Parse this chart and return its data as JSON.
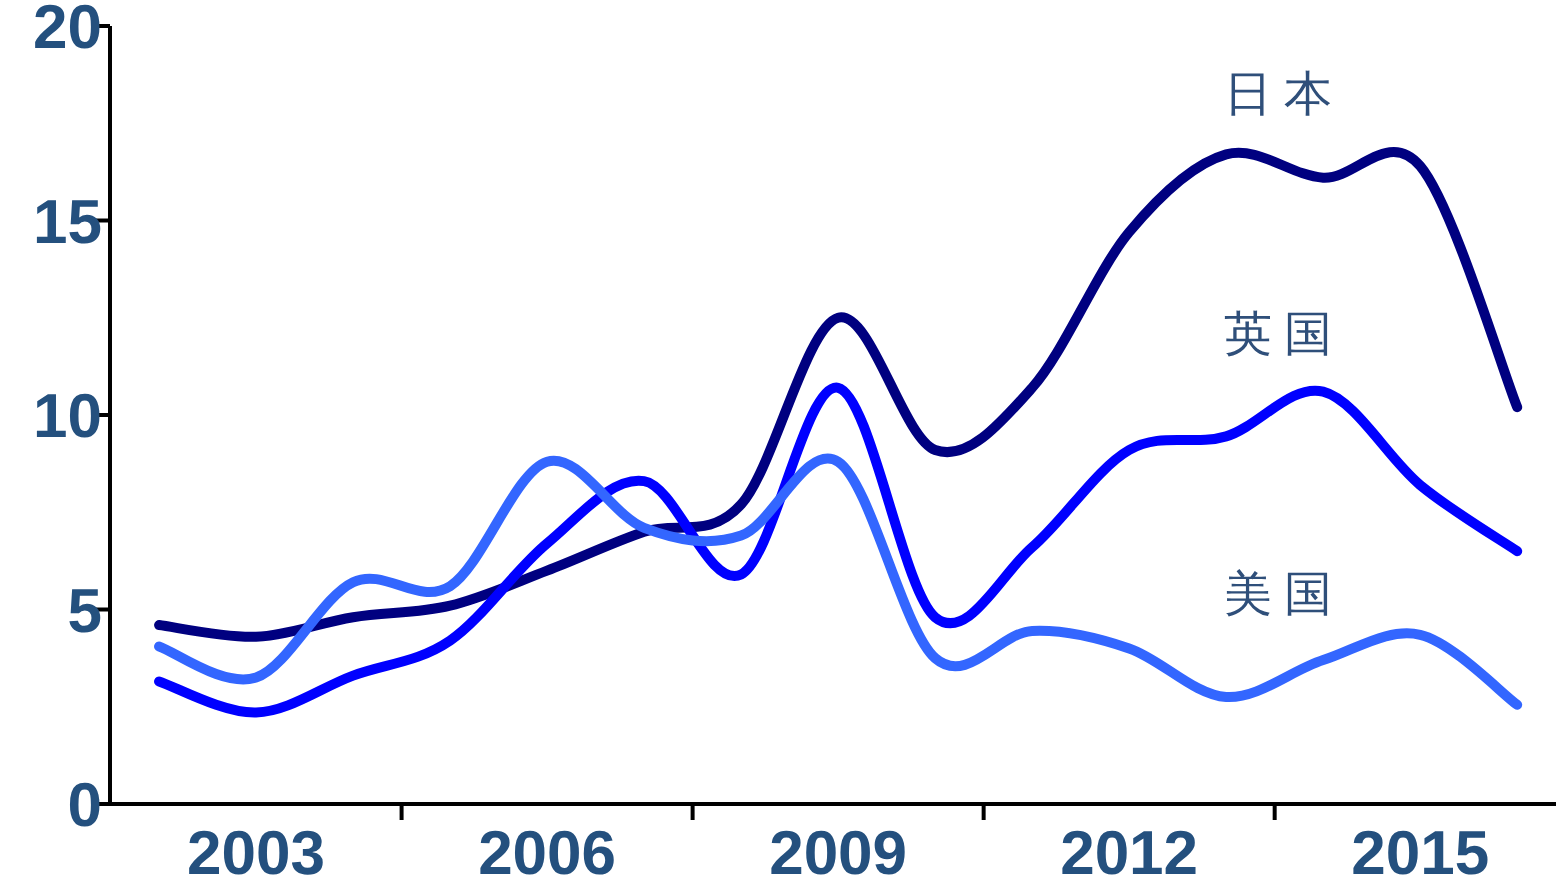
{
  "chart_data": {
    "type": "line",
    "x": [
      2002,
      2003,
      2004,
      2005,
      2006,
      2007,
      2008,
      2009,
      2010,
      2011,
      2012,
      2013,
      2014,
      2015,
      2016
    ],
    "series": [
      {
        "name": "日本",
        "color": "#000080",
        "values": [
          4.6,
          4.3,
          4.8,
          5.1,
          6.0,
          7.0,
          7.7,
          12.5,
          9.1,
          10.7,
          14.7,
          16.7,
          16.1,
          16.4,
          10.2
        ]
      },
      {
        "name": "英国",
        "color": "#0000ff",
        "values": [
          3.15,
          2.35,
          3.3,
          4.2,
          6.7,
          8.3,
          5.9,
          10.7,
          4.8,
          6.6,
          9.1,
          9.45,
          10.6,
          8.2,
          6.5
        ]
      },
      {
        "name": "美国",
        "color": "#3366ff",
        "values": [
          4.05,
          3.25,
          5.7,
          5.6,
          8.8,
          7.1,
          6.9,
          8.8,
          3.75,
          4.45,
          4.0,
          2.75,
          3.7,
          4.35,
          2.55
        ]
      }
    ],
    "xlim": [
      2001.35,
      2016.4
    ],
    "ylim": [
      0,
      20
    ],
    "xticks": [
      2003,
      2006,
      2009,
      2012,
      2015
    ],
    "yticks": [
      0,
      5,
      10,
      15,
      20
    ],
    "grid": false,
    "legend": false,
    "marker": "none",
    "line_style": "solid"
  }
}
